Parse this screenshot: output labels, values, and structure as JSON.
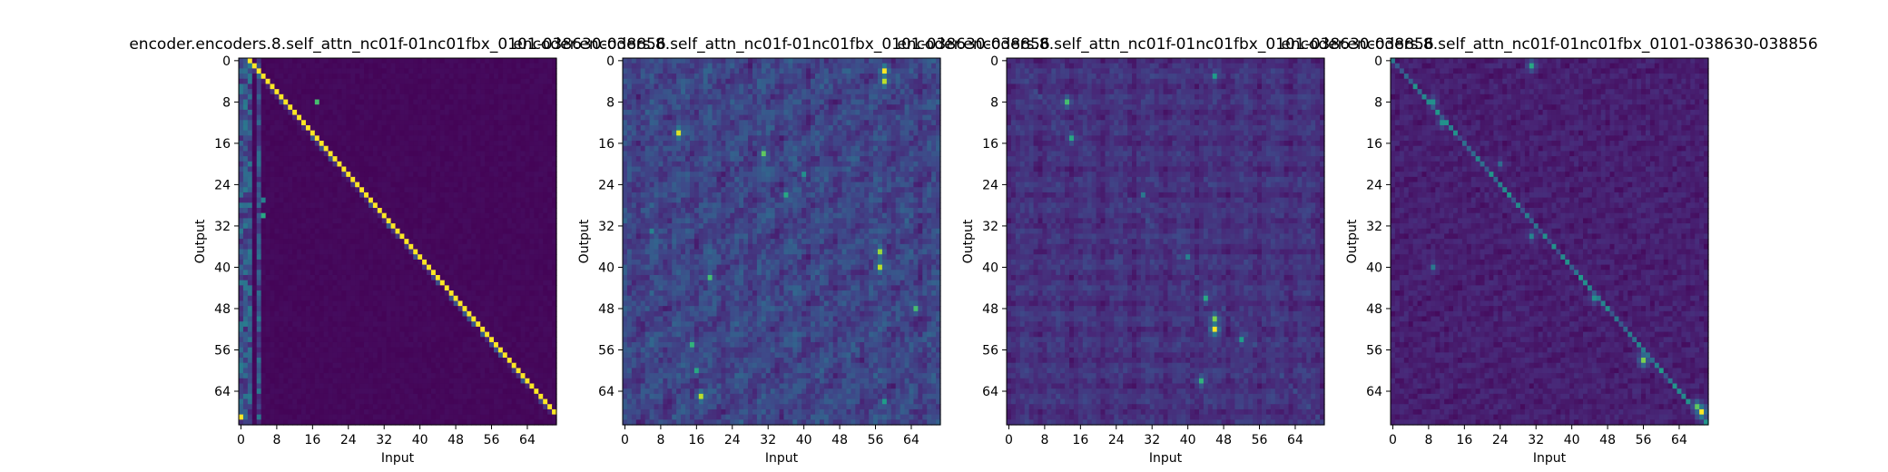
{
  "figure": {
    "background": "#ffffff",
    "colormap": {
      "name": "viridis",
      "stops": [
        "#440154",
        "#482878",
        "#3e4989",
        "#31688e",
        "#26828e",
        "#1f9e89",
        "#35b779",
        "#6ece58",
        "#b5de2b",
        "#fde725"
      ]
    }
  },
  "chart_data": [
    {
      "type": "heatmap",
      "title": "encoder.encoders.8.self_attn_nc01f-01nc01fbx_0101-038630-038856",
      "xlabel": "Input",
      "ylabel": "Output",
      "size": 71,
      "xticks": [
        "0",
        "8",
        "16",
        "24",
        "32",
        "40",
        "48",
        "56",
        "64"
      ],
      "yticks": [
        "0",
        "8",
        "16",
        "24",
        "32",
        "40",
        "48",
        "56",
        "64"
      ],
      "pattern": "diagonal",
      "background_level": 0.02,
      "diagonal_offset": 2,
      "diagonal_level": 1.0,
      "left_columns": [
        0,
        1,
        2,
        4
      ],
      "left_columns_level": 0.35,
      "hotspots": [
        {
          "row": 8,
          "col": 17,
          "value": 0.7
        },
        {
          "row": 69,
          "col": 0,
          "value": 1.0
        },
        {
          "row": 30,
          "col": 5,
          "value": 0.6
        },
        {
          "row": 27,
          "col": 5,
          "value": 0.45
        }
      ]
    },
    {
      "type": "heatmap",
      "title": "encoder.encoders.8.self_attn_nc01f-01nc01fbx_0101-038630-038856",
      "xlabel": "Input",
      "ylabel": "Output",
      "size": 71,
      "xticks": [
        "0",
        "8",
        "16",
        "24",
        "32",
        "40",
        "48",
        "56",
        "64"
      ],
      "yticks": [
        "0",
        "8",
        "16",
        "24",
        "32",
        "40",
        "48",
        "56",
        "64"
      ],
      "pattern": "diffuse",
      "background_level": 0.12,
      "diagonal_offset": 0,
      "diagonal_level": 0.15,
      "left_columns": [],
      "left_columns_level": 0,
      "hotspots": [
        {
          "row": 2,
          "col": 58,
          "value": 1.0
        },
        {
          "row": 4,
          "col": 58,
          "value": 0.9
        },
        {
          "row": 14,
          "col": 12,
          "value": 0.95
        },
        {
          "row": 18,
          "col": 31,
          "value": 0.75
        },
        {
          "row": 26,
          "col": 36,
          "value": 0.6
        },
        {
          "row": 37,
          "col": 57,
          "value": 0.85
        },
        {
          "row": 40,
          "col": 57,
          "value": 0.9
        },
        {
          "row": 42,
          "col": 19,
          "value": 0.7
        },
        {
          "row": 55,
          "col": 15,
          "value": 0.65
        },
        {
          "row": 60,
          "col": 16,
          "value": 0.6
        },
        {
          "row": 65,
          "col": 17,
          "value": 0.9
        },
        {
          "row": 48,
          "col": 65,
          "value": 0.7
        },
        {
          "row": 22,
          "col": 40,
          "value": 0.5
        },
        {
          "row": 33,
          "col": 6,
          "value": 0.45
        },
        {
          "row": 66,
          "col": 58,
          "value": 0.55
        }
      ]
    },
    {
      "type": "heatmap",
      "title": "encoder.encoders.8.self_attn_nc01f-01nc01fbx_0101-038630-038856",
      "xlabel": "Input",
      "ylabel": "Output",
      "size": 71,
      "xticks": [
        "0",
        "8",
        "16",
        "24",
        "32",
        "40",
        "48",
        "56",
        "64"
      ],
      "yticks": [
        "0",
        "8",
        "16",
        "24",
        "32",
        "40",
        "48",
        "56",
        "64"
      ],
      "pattern": "mixed",
      "background_level": 0.08,
      "diagonal_offset": 0,
      "diagonal_level": 0.25,
      "left_columns": [],
      "left_columns_level": 0,
      "hotspots": [
        {
          "row": 52,
          "col": 46,
          "value": 1.0
        },
        {
          "row": 50,
          "col": 46,
          "value": 0.8
        },
        {
          "row": 8,
          "col": 13,
          "value": 0.7
        },
        {
          "row": 15,
          "col": 14,
          "value": 0.6
        },
        {
          "row": 3,
          "col": 46,
          "value": 0.55
        },
        {
          "row": 46,
          "col": 44,
          "value": 0.6
        },
        {
          "row": 62,
          "col": 43,
          "value": 0.65
        },
        {
          "row": 38,
          "col": 40,
          "value": 0.45
        },
        {
          "row": 26,
          "col": 30,
          "value": 0.4
        },
        {
          "row": 54,
          "col": 52,
          "value": 0.55
        }
      ]
    },
    {
      "type": "heatmap",
      "title": "encoder.encoders.8.self_attn_nc01f-01nc01fbx_0101-038630-038856",
      "xlabel": "Input",
      "ylabel": "Output",
      "size": 71,
      "xticks": [
        "0",
        "8",
        "16",
        "24",
        "32",
        "40",
        "48",
        "56",
        "64"
      ],
      "yticks": [
        "0",
        "8",
        "16",
        "24",
        "32",
        "40",
        "48",
        "56",
        "64"
      ],
      "pattern": "sparse",
      "background_level": 0.06,
      "diagonal_offset": 0,
      "diagonal_level": 0.55,
      "left_columns": [],
      "left_columns_level": 0,
      "hotspots": [
        {
          "row": 68,
          "col": 69,
          "value": 1.0
        },
        {
          "row": 67,
          "col": 68,
          "value": 0.75
        },
        {
          "row": 58,
          "col": 56,
          "value": 0.8
        },
        {
          "row": 1,
          "col": 31,
          "value": 0.6
        },
        {
          "row": 8,
          "col": 9,
          "value": 0.5
        },
        {
          "row": 12,
          "col": 11,
          "value": 0.5
        },
        {
          "row": 34,
          "col": 31,
          "value": 0.45
        },
        {
          "row": 46,
          "col": 45,
          "value": 0.5
        },
        {
          "row": 40,
          "col": 9,
          "value": 0.4
        },
        {
          "row": 20,
          "col": 24,
          "value": 0.35
        }
      ]
    }
  ]
}
